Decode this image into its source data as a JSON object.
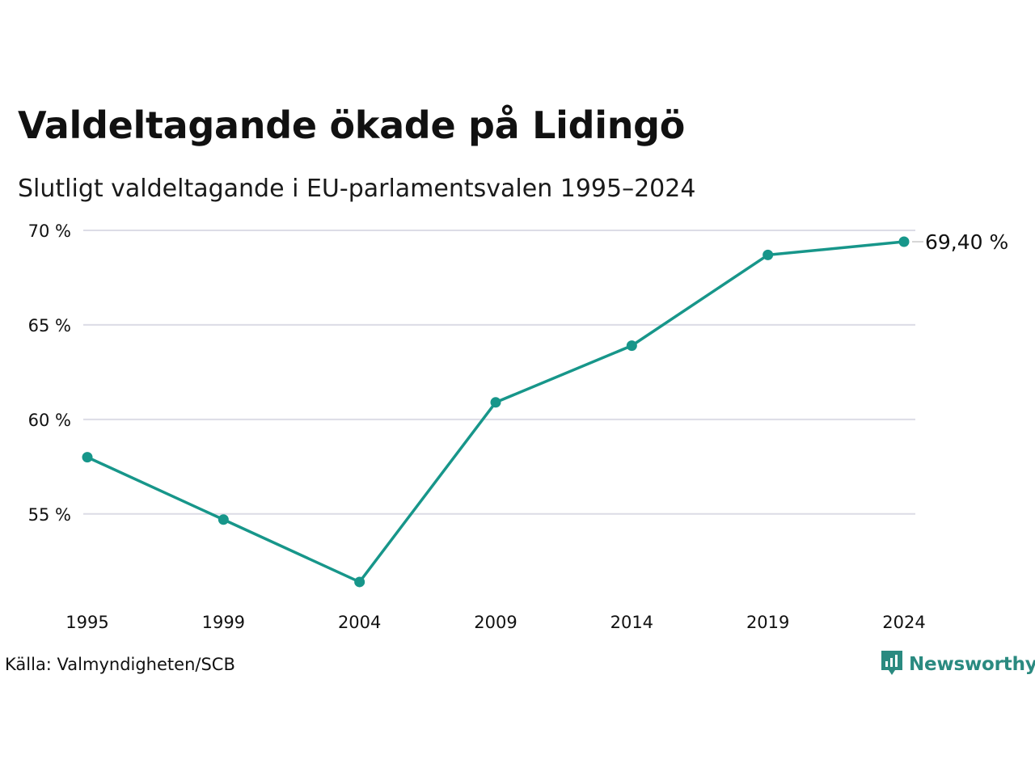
{
  "title": "Valdeltagande ökade på Lidingö",
  "subtitle": "Slutligt valdeltagande i EU-parlamentsvalen 1995–2024",
  "source": "Källa: Valmyndigheten/SCB",
  "brand": {
    "name": "Newsworthy",
    "icon": "newsworthy-logo-icon",
    "color": "#2a8a80"
  },
  "colors": {
    "line": "#17968a",
    "grid": "#dcdce6",
    "text": "#111111"
  },
  "chart_data": {
    "type": "line",
    "categories": [
      "1995",
      "1999",
      "2004",
      "2009",
      "2014",
      "2019",
      "2024"
    ],
    "series": [
      {
        "values": [
          58.0,
          54.7,
          51.4,
          60.9,
          63.9,
          68.7,
          69.4
        ]
      }
    ],
    "y_ticks": [
      55,
      60,
      65,
      70
    ],
    "y_tick_labels": [
      "55 %",
      "60 %",
      "65 %",
      "70 %"
    ],
    "ylim": [
      50.2,
      70
    ],
    "end_label": "69,40 %",
    "grid": "horizontal",
    "legend": "none"
  }
}
